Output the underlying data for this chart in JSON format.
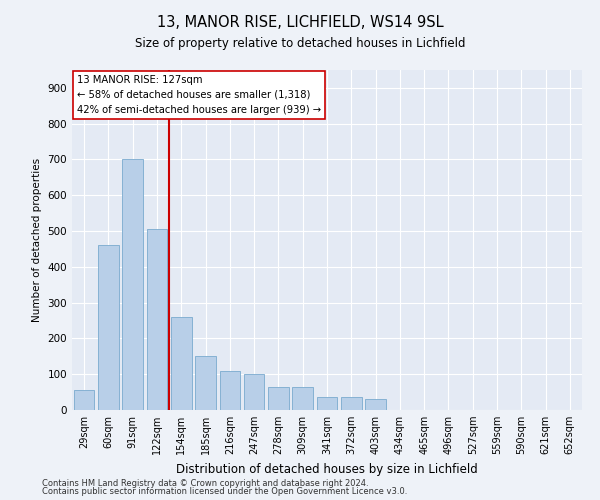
{
  "title_line1": "13, MANOR RISE, LICHFIELD, WS14 9SL",
  "title_line2": "Size of property relative to detached houses in Lichfield",
  "xlabel": "Distribution of detached houses by size in Lichfield",
  "ylabel": "Number of detached properties",
  "bar_color": "#b8cfe8",
  "bar_edge_color": "#7aaace",
  "annotation_line1": "13 MANOR RISE: 127sqm",
  "annotation_line2": "← 58% of detached houses are smaller (1,318)",
  "annotation_line3": "42% of semi-detached houses are larger (939) →",
  "vline_color": "#cc0000",
  "categories": [
    "29sqm",
    "60sqm",
    "91sqm",
    "122sqm",
    "154sqm",
    "185sqm",
    "216sqm",
    "247sqm",
    "278sqm",
    "309sqm",
    "341sqm",
    "372sqm",
    "403sqm",
    "434sqm",
    "465sqm",
    "496sqm",
    "527sqm",
    "559sqm",
    "590sqm",
    "621sqm",
    "652sqm"
  ],
  "values": [
    55,
    460,
    700,
    505,
    260,
    150,
    110,
    100,
    65,
    65,
    35,
    35,
    30,
    0,
    0,
    0,
    0,
    0,
    0,
    0,
    0
  ],
  "ylim": [
    0,
    950
  ],
  "yticks": [
    0,
    100,
    200,
    300,
    400,
    500,
    600,
    700,
    800,
    900
  ],
  "footnote1": "Contains HM Land Registry data © Crown copyright and database right 2024.",
  "footnote2": "Contains public sector information licensed under the Open Government Licence v3.0.",
  "background_color": "#eef2f8",
  "plot_bg_color": "#e4eaf4"
}
